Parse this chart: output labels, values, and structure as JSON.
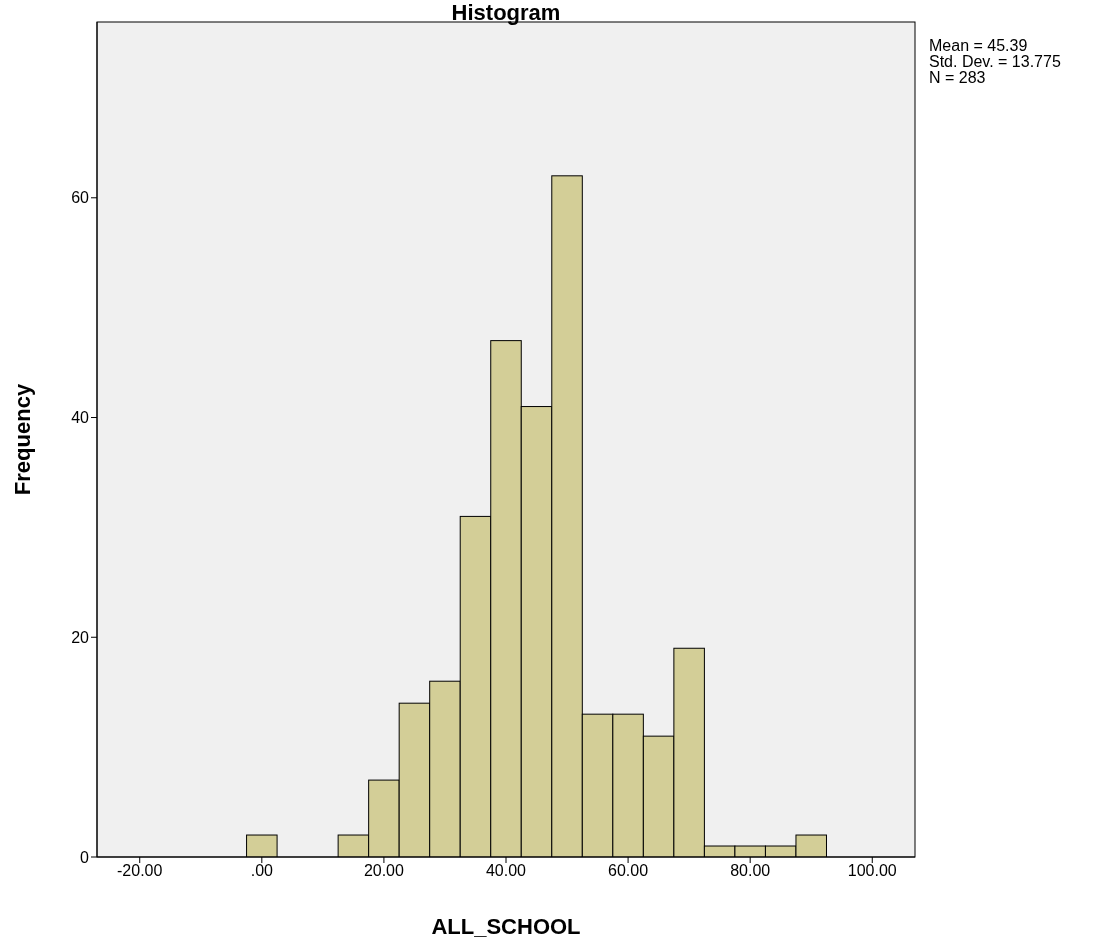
{
  "chart_data": {
    "type": "histogram",
    "title": "Histogram",
    "xlabel": "ALL_SCHOOL",
    "ylabel": "Frequency",
    "bins": [
      -2.5,
      2.5,
      7.5,
      12.5,
      17.5,
      22.5,
      27.5,
      32.5,
      37.5,
      42.5,
      47.5,
      52.5,
      57.5,
      62.5,
      67.5,
      72.5,
      77.5,
      82.5,
      87.5,
      92.5
    ],
    "values": [
      2,
      0,
      0,
      2,
      7,
      14,
      16,
      31,
      47,
      41,
      62,
      13,
      13,
      11,
      19,
      1,
      1,
      1,
      2
    ],
    "color": "#d3ce97",
    "xlim": [
      -27,
      107
    ],
    "xticks": [
      {
        "value": -20,
        "label": "-20.00"
      },
      {
        "value": 0,
        "label": ".00"
      },
      {
        "value": 20,
        "label": "20.00"
      },
      {
        "value": 40,
        "label": "40.00"
      },
      {
        "value": 60,
        "label": "60.00"
      },
      {
        "value": 80,
        "label": "80.00"
      },
      {
        "value": 100,
        "label": "100.00"
      }
    ],
    "ylim": [
      0,
      76
    ],
    "yticks": [
      0,
      20,
      40,
      60
    ],
    "grid": false,
    "annotations": [
      "Mean = 45.39",
      "Std. Dev. = 13.775",
      "N = 283"
    ]
  }
}
